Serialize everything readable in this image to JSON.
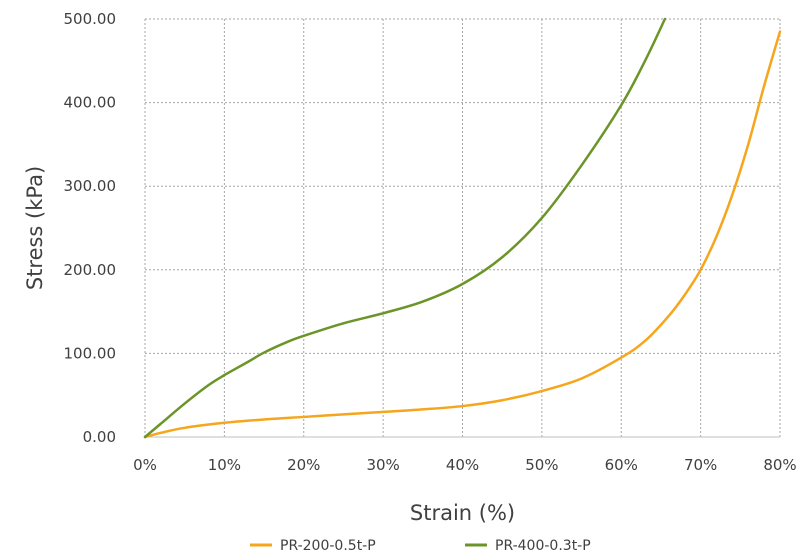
{
  "chart_data": {
    "type": "line",
    "title": "",
    "xlabel": "Strain (%)",
    "ylabel": "Stress (kPa)",
    "xlim": [
      0,
      80
    ],
    "ylim": [
      0,
      500
    ],
    "x_ticks": [
      0,
      10,
      20,
      30,
      40,
      50,
      60,
      70,
      80
    ],
    "x_tick_labels": [
      "0%",
      "10%",
      "20%",
      "30%",
      "40%",
      "50%",
      "60%",
      "70%",
      "80%"
    ],
    "y_ticks": [
      0,
      100,
      200,
      300,
      400,
      500
    ],
    "y_tick_labels": [
      "0.00",
      "100.00",
      "200.00",
      "300.00",
      "400.00",
      "500.00"
    ],
    "grid": true,
    "legend_position": "bottom",
    "series": [
      {
        "name": "PR-200-0.5t-P",
        "color": "#f5a61c",
        "x": [
          0,
          2,
          5,
          10,
          15,
          20,
          25,
          30,
          35,
          40,
          45,
          50,
          55,
          60,
          63,
          66,
          68,
          70,
          72,
          74,
          76,
          78,
          80
        ],
        "y": [
          0,
          5,
          11,
          17,
          21,
          24,
          27,
          30,
          33,
          37,
          44,
          55,
          70,
          95,
          115,
          145,
          170,
          200,
          240,
          290,
          350,
          420,
          485
        ]
      },
      {
        "name": "PR-400-0.3t-P",
        "color": "#6b9528",
        "x": [
          0,
          2,
          5,
          8,
          10,
          13,
          15,
          18,
          20,
          25,
          30,
          35,
          40,
          45,
          50,
          55,
          60,
          63,
          65.5
        ],
        "y": [
          0,
          16,
          40,
          62,
          74,
          90,
          101,
          114,
          121,
          136,
          148,
          162,
          183,
          215,
          262,
          325,
          397,
          450,
          500
        ]
      }
    ]
  }
}
